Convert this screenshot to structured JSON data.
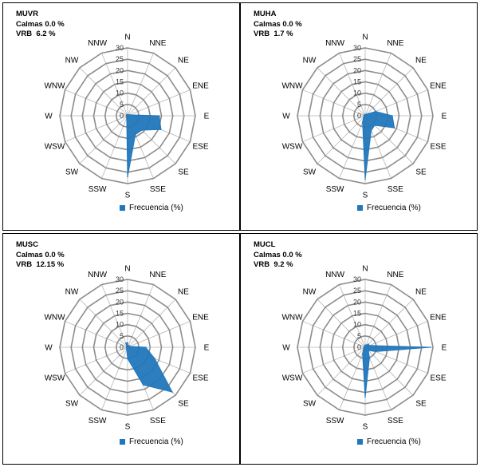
{
  "chart_data": [
    {
      "type": "radar",
      "station": "MUVR",
      "calmas": "Calmas 0.0 %",
      "vrb": "VRB  6.2 %",
      "directions": [
        "N",
        "NNE",
        "NE",
        "ENE",
        "E",
        "ESE",
        "SE",
        "SSE",
        "S",
        "SSW",
        "SW",
        "WSW",
        "W",
        "WNW",
        "NW",
        "NNW"
      ],
      "radial_ticks": [
        "0",
        "5",
        "10",
        "15",
        "20",
        "25",
        "30"
      ],
      "rmax": 30,
      "legend": "Frecuencia (%)",
      "series": [
        {
          "values": [
            0.5,
            0.5,
            0.5,
            1,
            14,
            16,
            9,
            9,
            27,
            1,
            0.5,
            0.5,
            0.5,
            0.5,
            0.5,
            0.5
          ]
        }
      ]
    },
    {
      "type": "radar",
      "station": "MUHA",
      "calmas": "Calmas 0.0 %",
      "vrb": "VRB  1.7 %",
      "directions": [
        "N",
        "NNE",
        "NE",
        "ENE",
        "E",
        "ESE",
        "SE",
        "SSE",
        "S",
        "SSW",
        "SW",
        "WSW",
        "W",
        "WNW",
        "NW",
        "NNW"
      ],
      "radial_ticks": [
        "0",
        "5",
        "10",
        "15",
        "20",
        "25",
        "30"
      ],
      "rmax": 30,
      "legend": "Frecuencia (%)",
      "series": [
        {
          "values": [
            0.5,
            0.5,
            1,
            5,
            12,
            14,
            6,
            7,
            28,
            3,
            1,
            0.5,
            0.5,
            0.5,
            0.5,
            0.5
          ]
        }
      ]
    },
    {
      "type": "radar",
      "station": "MUSC",
      "calmas": "Calmas 0.0 %",
      "vrb": "VRB  12.15 %",
      "directions": [
        "N",
        "NNE",
        "NE",
        "ENE",
        "E",
        "ESE",
        "SE",
        "SSE",
        "S",
        "SSW",
        "SW",
        "WSW",
        "W",
        "WNW",
        "NW",
        "NNW"
      ],
      "radial_ticks": [
        "0",
        "5",
        "10",
        "15",
        "20",
        "25",
        "30"
      ],
      "rmax": 30,
      "legend": "Frecuencia (%)",
      "series": [
        {
          "values": [
            2,
            0.5,
            1,
            1,
            8,
            13,
            28,
            18,
            5,
            1,
            0.5,
            0.5,
            0.5,
            0.5,
            0.5,
            2
          ]
        }
      ]
    },
    {
      "type": "radar",
      "station": "MUCL",
      "calmas": "Calmas 0.0 %",
      "vrb": "VRB  9.2 %",
      "directions": [
        "N",
        "NNE",
        "NE",
        "ENE",
        "E",
        "ESE",
        "SE",
        "SSE",
        "S",
        "SSW",
        "SW",
        "WSW",
        "W",
        "WNW",
        "NW",
        "NNW"
      ],
      "radial_ticks": [
        "0",
        "5",
        "10",
        "15",
        "20",
        "25",
        "30"
      ],
      "rmax": 30,
      "legend": "Frecuencia (%)",
      "series": [
        {
          "values": [
            1,
            1,
            2,
            2,
            29,
            5,
            2,
            5,
            22,
            3,
            1,
            0.5,
            0.5,
            0.5,
            0.5,
            0.5
          ]
        }
      ]
    }
  ],
  "colors": {
    "series": "#2277bb",
    "grid": "#8c8c8c",
    "spoke": "#b5b5b5"
  }
}
